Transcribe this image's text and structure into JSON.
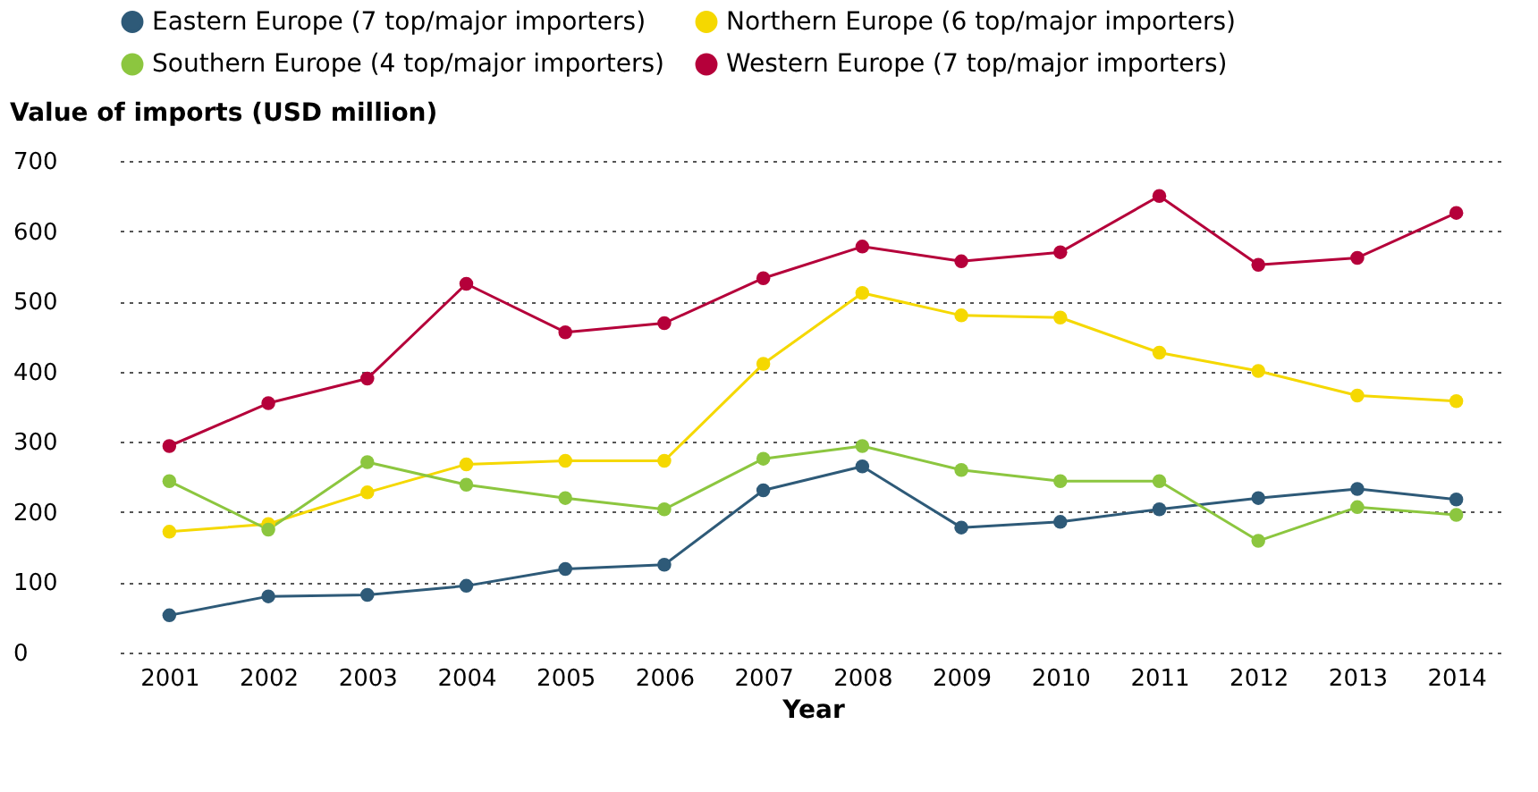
{
  "chart_data": {
    "type": "line",
    "ylabel": "Value of imports (USD million)",
    "xlabel": "Year",
    "categories": [
      "2001",
      "2002",
      "2003",
      "2004",
      "2005",
      "2006",
      "2007",
      "2008",
      "2009",
      "2010",
      "2011",
      "2012",
      "2013",
      "2014"
    ],
    "series": [
      {
        "name": "Eastern Europe (7 top/major importers)",
        "color": "#2e5a78",
        "values": [
          53,
          80,
          82,
          95,
          119,
          125,
          231,
          265,
          178,
          186,
          204,
          220,
          233,
          218
        ]
      },
      {
        "name": "Northern Europe (6 top/major importers)",
        "color": "#f5d800",
        "values": [
          172,
          183,
          228,
          268,
          273,
          273,
          411,
          512,
          480,
          477,
          427,
          401,
          366,
          358
        ]
      },
      {
        "name": "Southern Europe (4 top/major importers)",
        "color": "#8cc63f",
        "values": [
          244,
          175,
          271,
          239,
          220,
          204,
          276,
          294,
          260,
          244,
          244,
          159,
          207,
          196
        ]
      },
      {
        "name": "Western Europe (7 top/major importers)",
        "color": "#b5003a",
        "values": [
          294,
          355,
          390,
          525,
          456,
          469,
          533,
          578,
          557,
          570,
          650,
          552,
          562,
          626
        ]
      }
    ],
    "ylim": [
      0,
      700
    ],
    "yticks": [
      0,
      100,
      200,
      300,
      400,
      500,
      600,
      700
    ],
    "grid": "y",
    "legend": "top",
    "marker": "circle",
    "line_style": "solid"
  }
}
